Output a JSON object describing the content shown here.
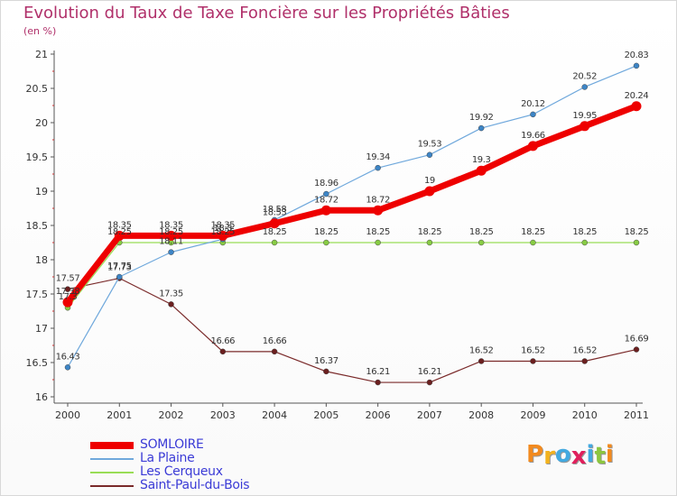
{
  "title": "Evolution du Taux de Taxe Foncière sur les Propriétés Bâties",
  "subtitle": "(en %)",
  "brand": {
    "text": "Proxiti",
    "colors": [
      "#f28a1e",
      "#f2b21e",
      "#43a9e0",
      "#e0205c",
      "#43a9e0",
      "#8cc63f",
      "#f28a1e"
    ]
  },
  "chart_data": {
    "type": "line",
    "title": "Evolution du Taux de Taxe Foncière sur les Propriétés Bâties",
    "ylabel": "(en %)",
    "xlabel": "",
    "x": [
      "2000",
      "2001",
      "2002",
      "2003",
      "2004",
      "2005",
      "2006",
      "2007",
      "2008",
      "2009",
      "2010",
      "2011"
    ],
    "ylim": [
      16,
      21
    ],
    "yticks": [
      "16",
      "16.5",
      "17",
      "17.5",
      "18",
      "18.5",
      "19",
      "19.5",
      "20",
      "20.5",
      "21"
    ],
    "grid": false,
    "legend_position": "bottom-left",
    "series": [
      {
        "name": "SOMLOIRE",
        "color": "#ee0000",
        "values": [
          17.38,
          18.35,
          18.35,
          18.35,
          18.53,
          18.72,
          18.72,
          19,
          19.3,
          19.66,
          19.95,
          20.24
        ],
        "labels": [
          "17.38",
          "18.35",
          "18.35",
          "18.35",
          "18.53",
          "18.72",
          "18.72",
          "19",
          "19.3",
          "19.66",
          "19.95",
          "20.24"
        ]
      },
      {
        "name": "La Plaine",
        "color": "#6fa8dc",
        "values": [
          16.43,
          17.75,
          18.11,
          18.3,
          18.58,
          18.96,
          19.34,
          19.53,
          19.92,
          20.12,
          20.52,
          20.83
        ],
        "labels": [
          "16.43",
          "17.75",
          "18.11",
          "18.3",
          "18.58",
          "18.96",
          "19.34",
          "19.53",
          "19.92",
          "20.12",
          "20.52",
          "20.83"
        ]
      },
      {
        "name": "Les Cerqueux",
        "color": "#99dd55",
        "values": [
          17.3,
          18.25,
          18.25,
          18.25,
          18.25,
          18.25,
          18.25,
          18.25,
          18.25,
          18.25,
          18.25,
          18.25
        ],
        "labels": [
          "17.3",
          "18.25",
          "18.25",
          "18.25",
          "18.25",
          "18.25",
          "18.25",
          "18.25",
          "18.25",
          "18.25",
          "18.25",
          "18.25"
        ]
      },
      {
        "name": "Saint-Paul-du-Bois",
        "color": "#7a2a2a",
        "values": [
          17.57,
          17.73,
          17.35,
          16.66,
          16.66,
          16.37,
          16.21,
          16.21,
          16.52,
          16.52,
          16.52,
          16.69
        ],
        "labels": [
          "17.57",
          "17.73",
          "17.35",
          "16.66",
          "16.66",
          "16.37",
          "16.21",
          "16.21",
          "16.52",
          "16.52",
          "16.52",
          "16.69"
        ]
      }
    ]
  }
}
